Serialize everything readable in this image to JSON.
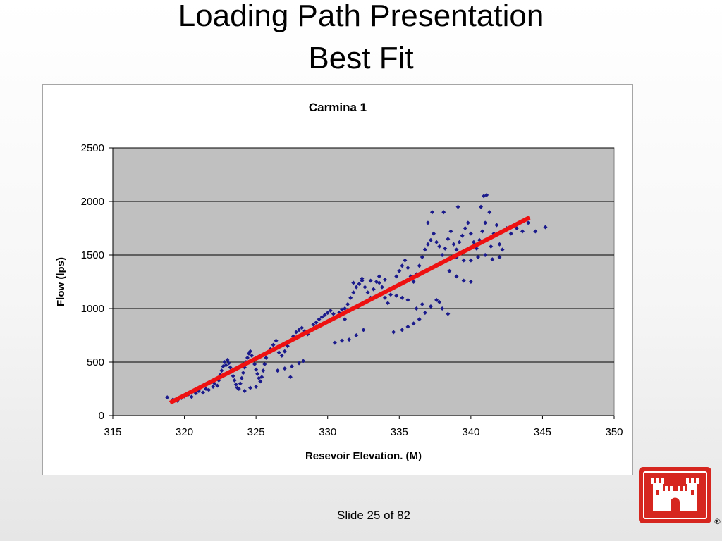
{
  "slide": {
    "title_line1": "Loading Path Presentation",
    "title_line2": "Best Fit",
    "slide_number": "Slide 25 of 82",
    "logo_name": "castle-logo-icon",
    "logo_registered": "®"
  },
  "colors": {
    "plot_background": "#c0c0c0",
    "gridline": "#000000",
    "points": "#1a1a8c",
    "best_fit": "#ee1111",
    "logo": "#d6261f"
  },
  "chart_data": {
    "type": "scatter",
    "title": "Carmina 1",
    "xlabel": "Resevoir Elevation. (M)",
    "ylabel": "Flow (lps)",
    "xlim": [
      315,
      350
    ],
    "ylim": [
      0,
      2500
    ],
    "x_ticks": [
      "315",
      "320",
      "325",
      "330",
      "335",
      "340",
      "345",
      "350"
    ],
    "y_ticks": [
      "0",
      "500",
      "1000",
      "1500",
      "2000",
      "2500"
    ],
    "grid": "horizontal",
    "legend": "none",
    "series": [
      {
        "marker": "diamond",
        "points": [
          [
            318.8,
            170
          ],
          [
            319.2,
            150
          ],
          [
            319.5,
            140
          ],
          [
            319.8,
            165
          ],
          [
            320.0,
            180
          ],
          [
            320.3,
            200
          ],
          [
            320.5,
            175
          ],
          [
            320.8,
            210
          ],
          [
            321.0,
            230
          ],
          [
            321.3,
            215
          ],
          [
            321.5,
            250
          ],
          [
            321.7,
            240
          ],
          [
            322.0,
            270
          ],
          [
            322.1,
            300
          ],
          [
            322.3,
            280
          ],
          [
            322.4,
            330
          ],
          [
            322.5,
            380
          ],
          [
            322.6,
            420
          ],
          [
            322.7,
            460
          ],
          [
            322.8,
            500
          ],
          [
            322.9,
            470
          ],
          [
            323.0,
            520
          ],
          [
            323.1,
            490
          ],
          [
            323.2,
            450
          ],
          [
            323.3,
            410
          ],
          [
            323.4,
            370
          ],
          [
            323.5,
            330
          ],
          [
            323.6,
            290
          ],
          [
            323.7,
            260
          ],
          [
            323.8,
            250
          ],
          [
            323.9,
            300
          ],
          [
            324.0,
            350
          ],
          [
            324.1,
            400
          ],
          [
            324.2,
            450
          ],
          [
            324.3,
            500
          ],
          [
            324.4,
            540
          ],
          [
            324.5,
            580
          ],
          [
            324.6,
            600
          ],
          [
            324.7,
            560
          ],
          [
            324.8,
            520
          ],
          [
            324.9,
            480
          ],
          [
            325.0,
            430
          ],
          [
            325.1,
            390
          ],
          [
            325.2,
            350
          ],
          [
            325.3,
            320
          ],
          [
            325.4,
            360
          ],
          [
            325.5,
            420
          ],
          [
            325.6,
            480
          ],
          [
            325.7,
            540
          ],
          [
            325.8,
            590
          ],
          [
            326.0,
            620
          ],
          [
            326.2,
            660
          ],
          [
            326.4,
            700
          ],
          [
            326.5,
            640
          ],
          [
            326.6,
            590
          ],
          [
            326.8,
            560
          ],
          [
            327.0,
            600
          ],
          [
            327.2,
            650
          ],
          [
            327.4,
            700
          ],
          [
            327.6,
            740
          ],
          [
            327.8,
            780
          ],
          [
            328.0,
            800
          ],
          [
            328.2,
            820
          ],
          [
            328.4,
            790
          ],
          [
            328.6,
            760
          ],
          [
            328.8,
            800
          ],
          [
            329.0,
            850
          ],
          [
            329.2,
            870
          ],
          [
            329.4,
            900
          ],
          [
            329.6,
            920
          ],
          [
            329.8,
            940
          ],
          [
            330.0,
            960
          ],
          [
            330.2,
            980
          ],
          [
            330.4,
            950
          ],
          [
            330.6,
            920
          ],
          [
            330.8,
            960
          ],
          [
            331.0,
            990
          ],
          [
            331.2,
            1000
          ],
          [
            331.4,
            1040
          ],
          [
            331.6,
            1100
          ],
          [
            331.8,
            1150
          ],
          [
            332.0,
            1200
          ],
          [
            332.2,
            1230
          ],
          [
            332.4,
            1260
          ],
          [
            332.6,
            1200
          ],
          [
            332.8,
            1150
          ],
          [
            333.0,
            1100
          ],
          [
            333.2,
            1180
          ],
          [
            333.4,
            1250
          ],
          [
            333.6,
            1300
          ],
          [
            333.8,
            1200
          ],
          [
            334.0,
            1100
          ],
          [
            334.2,
            1050
          ],
          [
            334.4,
            1130
          ],
          [
            334.6,
            1200
          ],
          [
            334.8,
            1300
          ],
          [
            335.0,
            1350
          ],
          [
            335.2,
            1400
          ],
          [
            335.4,
            1450
          ],
          [
            335.6,
            1380
          ],
          [
            335.8,
            1300
          ],
          [
            336.0,
            1250
          ],
          [
            336.2,
            1320
          ],
          [
            336.4,
            1400
          ],
          [
            336.6,
            1480
          ],
          [
            336.8,
            1550
          ],
          [
            337.0,
            1600
          ],
          [
            337.2,
            1640
          ],
          [
            337.4,
            1700
          ],
          [
            337.6,
            1620
          ],
          [
            337.8,
            1580
          ],
          [
            338.0,
            1500
          ],
          [
            338.2,
            1560
          ],
          [
            338.4,
            1650
          ],
          [
            338.6,
            1720
          ],
          [
            338.8,
            1600
          ],
          [
            339.0,
            1550
          ],
          [
            339.2,
            1620
          ],
          [
            339.4,
            1680
          ],
          [
            339.6,
            1750
          ],
          [
            339.8,
            1800
          ],
          [
            340.0,
            1700
          ],
          [
            340.2,
            1620
          ],
          [
            340.4,
            1560
          ],
          [
            340.6,
            1640
          ],
          [
            340.8,
            1720
          ],
          [
            341.0,
            1800
          ],
          [
            341.2,
            1650
          ],
          [
            341.4,
            1580
          ],
          [
            341.6,
            1700
          ],
          [
            341.8,
            1780
          ],
          [
            342.0,
            1600
          ],
          [
            342.2,
            1550
          ],
          [
            342.5,
            1750
          ],
          [
            342.8,
            1700
          ],
          [
            343.2,
            1750
          ],
          [
            343.6,
            1720
          ],
          [
            344.0,
            1800
          ],
          [
            344.5,
            1720
          ],
          [
            345.2,
            1760
          ],
          [
            340.9,
            2050
          ],
          [
            341.1,
            2060
          ],
          [
            340.7,
            1950
          ],
          [
            341.3,
            1900
          ],
          [
            339.1,
            1950
          ],
          [
            338.1,
            1900
          ],
          [
            337.0,
            1800
          ],
          [
            337.3,
            1900
          ],
          [
            326.5,
            420
          ],
          [
            327.0,
            440
          ],
          [
            327.5,
            460
          ],
          [
            328.0,
            490
          ],
          [
            328.3,
            510
          ],
          [
            327.4,
            360
          ],
          [
            324.2,
            230
          ],
          [
            324.6,
            260
          ],
          [
            325.0,
            270
          ],
          [
            330.5,
            680
          ],
          [
            331.0,
            700
          ],
          [
            331.5,
            710
          ],
          [
            332.0,
            750
          ],
          [
            332.5,
            800
          ],
          [
            331.2,
            900
          ],
          [
            334.6,
            780
          ],
          [
            335.2,
            800
          ],
          [
            335.6,
            830
          ],
          [
            336.0,
            860
          ],
          [
            336.4,
            900
          ],
          [
            336.8,
            960
          ],
          [
            337.2,
            1020
          ],
          [
            337.6,
            1080
          ],
          [
            338.0,
            1000
          ],
          [
            338.4,
            950
          ],
          [
            337.8,
            1060
          ],
          [
            331.8,
            1240
          ],
          [
            332.4,
            1280
          ],
          [
            333.0,
            1260
          ],
          [
            333.6,
            1240
          ],
          [
            334.0,
            1270
          ],
          [
            334.8,
            1120
          ],
          [
            335.2,
            1100
          ],
          [
            335.6,
            1080
          ],
          [
            336.2,
            1000
          ],
          [
            336.6,
            1040
          ],
          [
            339.0,
            1480
          ],
          [
            339.5,
            1450
          ],
          [
            340.0,
            1450
          ],
          [
            340.5,
            1480
          ],
          [
            341.0,
            1500
          ],
          [
            341.5,
            1460
          ],
          [
            342.0,
            1480
          ],
          [
            338.5,
            1350
          ],
          [
            339.0,
            1300
          ],
          [
            339.5,
            1260
          ],
          [
            340.0,
            1250
          ]
        ]
      }
    ],
    "best_fit": {
      "x": [
        319.0,
        344.1
      ],
      "y": [
        120,
        1850
      ],
      "color": "#ee1111"
    }
  }
}
